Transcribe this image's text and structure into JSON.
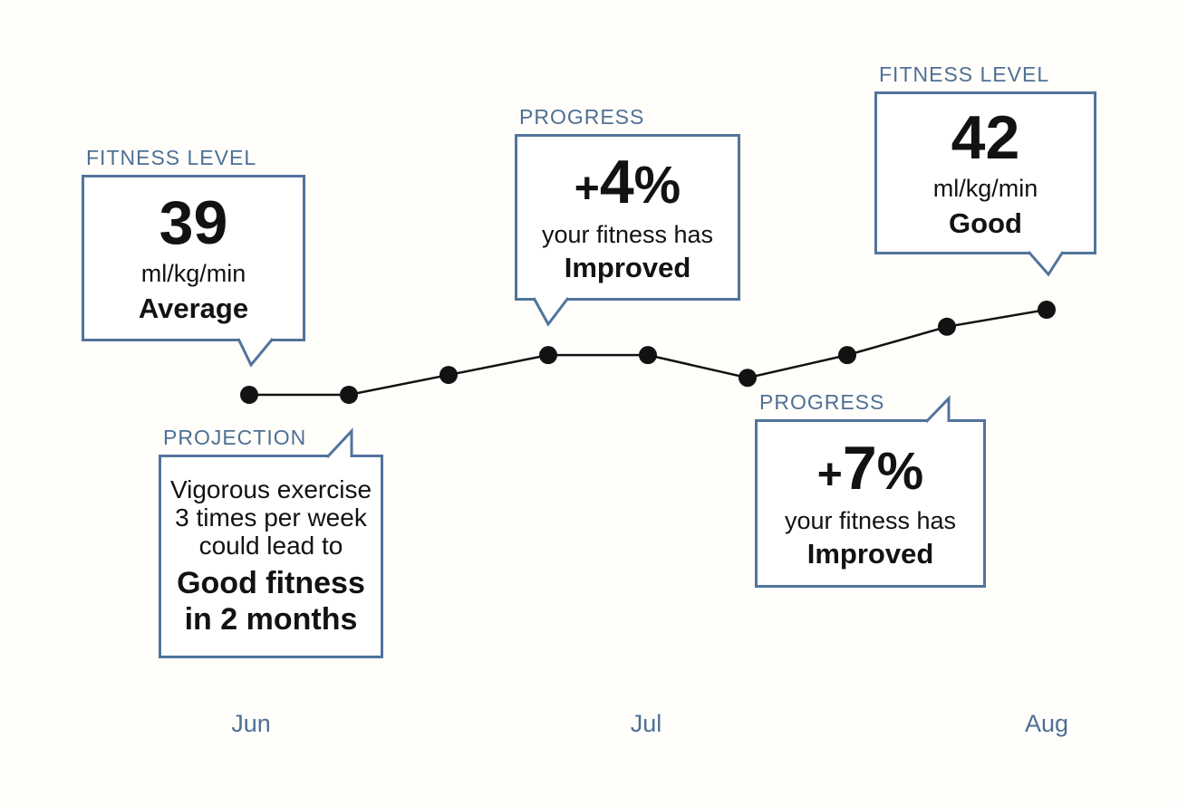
{
  "colors": {
    "accent_border": "#51749b",
    "label_text": "#4e7095",
    "body_text": "#121212",
    "background": "#fffefb"
  },
  "callouts": {
    "fitness_start": {
      "label": "FITNESS LEVEL",
      "value": "39",
      "unit": "ml/kg/min",
      "rating": "Average"
    },
    "progress_mid": {
      "label": "PROGRESS",
      "sign": "+",
      "number": "4",
      "percent": "%",
      "caption": "your fitness has",
      "caption_bold": "Improved"
    },
    "fitness_end": {
      "label": "FITNESS LEVEL",
      "value": "42",
      "unit": "ml/kg/min",
      "rating": "Good"
    },
    "projection": {
      "label": "PROJECTION",
      "line1": "Vigorous exercise",
      "line2": "3 times per week",
      "line3": "could lead to",
      "bold_line1": "Good fitness",
      "bold_line2": "in 2 months"
    },
    "progress_end": {
      "label": "PROGRESS",
      "sign": "+",
      "number": "7",
      "percent": "%",
      "caption": "your fitness has",
      "caption_bold": "Improved"
    }
  },
  "chart_data": {
    "type": "line",
    "title": "",
    "x": [
      0,
      1,
      2,
      3,
      4,
      5,
      6,
      7,
      8
    ],
    "values": [
      39,
      39,
      39.7,
      40.4,
      40.4,
      39.6,
      40.4,
      41.4,
      42
    ],
    "x_tick_positions": [
      0,
      4,
      8
    ],
    "x_tick_labels": [
      "Jun",
      "Jul",
      "Aug"
    ],
    "ylabel": "ml/kg/min",
    "ylim": [
      38.5,
      42.6
    ],
    "grid": false,
    "legend": false,
    "line_color": "#121212",
    "marker_color": "#121212",
    "marker_radius": 10,
    "annotations": [
      {
        "x": 0,
        "text": "FITNESS LEVEL 39 ml/kg/min Average"
      },
      {
        "x": 3,
        "text": "PROGRESS +4% your fitness has Improved"
      },
      {
        "x": 0,
        "text": "PROJECTION Vigorous exercise 3 times per week could lead to Good fitness in 2 months"
      },
      {
        "x": 7,
        "text": "PROGRESS +7% your fitness has Improved"
      },
      {
        "x": 8,
        "text": "FITNESS LEVEL 42 ml/kg/min Good"
      }
    ]
  }
}
